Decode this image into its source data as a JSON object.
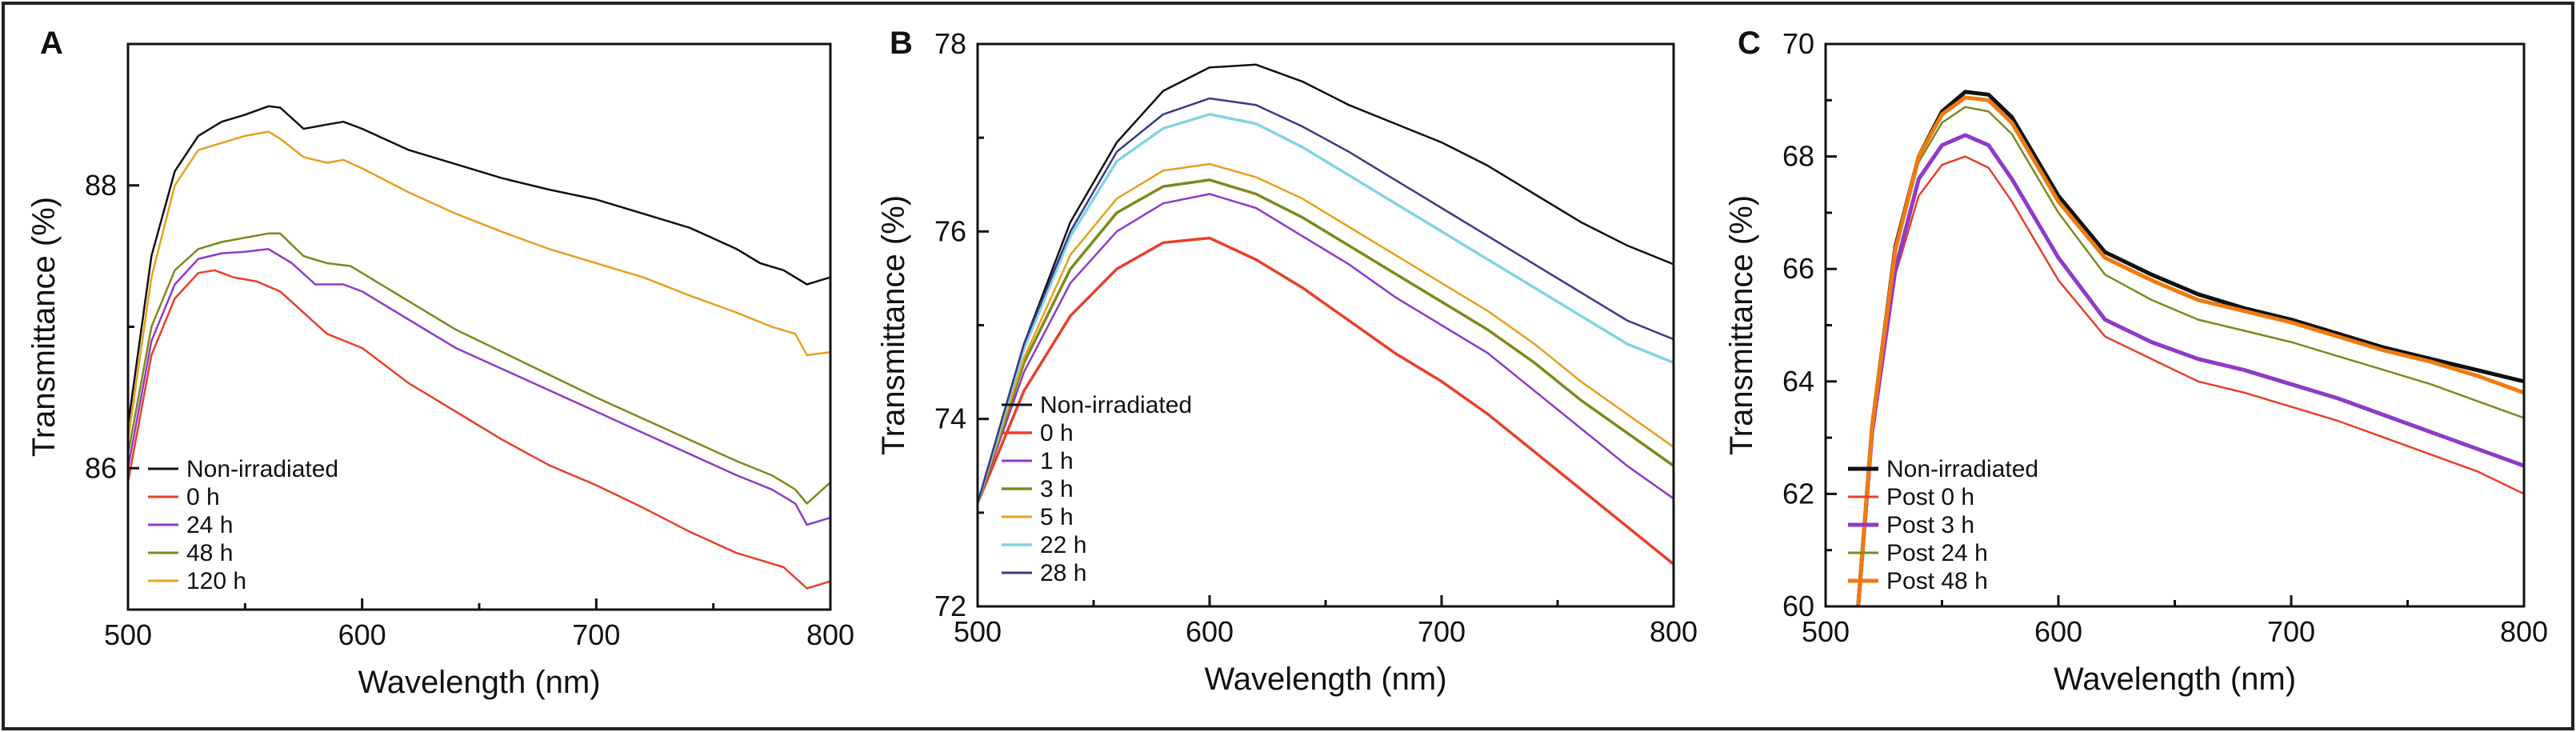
{
  "figure": {
    "border_color": "#222222"
  },
  "chart_data": [
    {
      "panel": "A",
      "type": "line",
      "title": "",
      "xlabel": "Wavelength (nm)",
      "ylabel": "Transmittance (%)",
      "xlim": [
        500,
        800
      ],
      "ylim": [
        85.0,
        89.0
      ],
      "xticks": [
        500,
        600,
        700,
        800
      ],
      "xtick_labels": [
        "500",
        "600",
        "700",
        "800"
      ],
      "yticks": [
        86,
        88
      ],
      "ytick_labels": [
        "86",
        "88"
      ],
      "legend_position": "bottom-left",
      "series": [
        {
          "name": "Non-irradiated",
          "color": "#111111",
          "width": 2.5,
          "x": [
            500,
            510,
            520,
            530,
            540,
            550,
            560,
            565,
            575,
            585,
            592,
            600,
            620,
            640,
            660,
            680,
            700,
            720,
            740,
            760,
            770,
            780,
            790,
            800
          ],
          "y": [
            86.3,
            87.5,
            88.1,
            88.35,
            88.45,
            88.5,
            88.56,
            88.55,
            88.4,
            88.43,
            88.45,
            88.4,
            88.25,
            88.15,
            88.05,
            87.97,
            87.9,
            87.8,
            87.7,
            87.55,
            87.45,
            87.4,
            87.3,
            87.35
          ]
        },
        {
          "name": "0 h",
          "color": "#e8402a",
          "width": 2.5,
          "x": [
            500,
            510,
            520,
            530,
            537,
            545,
            555,
            565,
            575,
            585,
            600,
            620,
            640,
            660,
            680,
            700,
            720,
            740,
            760,
            770,
            780,
            790,
            800
          ],
          "y": [
            85.9,
            86.8,
            87.2,
            87.38,
            87.4,
            87.35,
            87.32,
            87.25,
            87.1,
            86.95,
            86.85,
            86.6,
            86.4,
            86.2,
            86.02,
            85.88,
            85.72,
            85.55,
            85.4,
            85.35,
            85.3,
            85.15,
            85.2
          ]
        },
        {
          "name": "24 h",
          "color": "#8e3bc8",
          "width": 2.5,
          "x": [
            500,
            510,
            520,
            530,
            540,
            550,
            560,
            570,
            580,
            592,
            600,
            620,
            640,
            660,
            680,
            700,
            720,
            740,
            760,
            775,
            785,
            790,
            800
          ],
          "y": [
            86.0,
            86.9,
            87.3,
            87.48,
            87.52,
            87.53,
            87.55,
            87.45,
            87.3,
            87.3,
            87.25,
            87.05,
            86.85,
            86.7,
            86.55,
            86.4,
            86.25,
            86.1,
            85.95,
            85.85,
            85.75,
            85.6,
            85.65
          ]
        },
        {
          "name": "48 h",
          "color": "#7c8a1c",
          "width": 2.5,
          "x": [
            500,
            510,
            520,
            530,
            540,
            550,
            560,
            565,
            575,
            585,
            595,
            600,
            620,
            640,
            660,
            680,
            700,
            720,
            740,
            760,
            775,
            785,
            790,
            800
          ],
          "y": [
            86.1,
            87.0,
            87.4,
            87.55,
            87.6,
            87.63,
            87.66,
            87.66,
            87.5,
            87.45,
            87.43,
            87.38,
            87.18,
            86.98,
            86.82,
            86.66,
            86.5,
            86.35,
            86.2,
            86.05,
            85.95,
            85.85,
            85.75,
            85.9
          ]
        },
        {
          "name": "120 h",
          "color": "#e8a020",
          "width": 2.5,
          "x": [
            500,
            510,
            520,
            530,
            540,
            550,
            560,
            565,
            575,
            585,
            592,
            600,
            620,
            640,
            660,
            680,
            700,
            720,
            740,
            760,
            775,
            785,
            790,
            800
          ],
          "y": [
            86.2,
            87.35,
            88.0,
            88.25,
            88.3,
            88.35,
            88.38,
            88.33,
            88.2,
            88.16,
            88.18,
            88.12,
            87.95,
            87.8,
            87.67,
            87.55,
            87.45,
            87.35,
            87.22,
            87.1,
            87.0,
            86.95,
            86.8,
            86.82
          ]
        }
      ]
    },
    {
      "panel": "B",
      "type": "line",
      "title": "",
      "xlabel": "Wavelength (nm)",
      "ylabel": "Transmittance (%)",
      "xlim": [
        500,
        800
      ],
      "ylim": [
        72,
        78
      ],
      "xticks": [
        500,
        600,
        700,
        800
      ],
      "xtick_labels": [
        "500",
        "600",
        "700",
        "800"
      ],
      "yticks": [
        72,
        74,
        76,
        78
      ],
      "ytick_labels": [
        "72",
        "74",
        "76",
        "78"
      ],
      "legend_position": "bottom-left",
      "series": [
        {
          "name": "Non-irradiated",
          "color": "#111111",
          "width": 2.5,
          "x": [
            500,
            520,
            540,
            560,
            580,
            600,
            620,
            640,
            660,
            680,
            700,
            720,
            740,
            760,
            780,
            800
          ],
          "y": [
            73.1,
            74.8,
            76.1,
            76.95,
            77.5,
            77.75,
            77.78,
            77.6,
            77.35,
            77.15,
            76.95,
            76.7,
            76.4,
            76.1,
            75.85,
            75.65
          ]
        },
        {
          "name": "0 h",
          "color": "#e8402a",
          "width": 3.5,
          "x": [
            500,
            520,
            540,
            560,
            580,
            600,
            620,
            640,
            660,
            680,
            700,
            720,
            740,
            760,
            780,
            800
          ],
          "y": [
            73.1,
            74.3,
            75.1,
            75.6,
            75.88,
            75.93,
            75.7,
            75.4,
            75.05,
            74.7,
            74.4,
            74.05,
            73.65,
            73.25,
            72.85,
            72.45
          ]
        },
        {
          "name": "1 h",
          "color": "#8e3bc8",
          "width": 2.5,
          "x": [
            500,
            520,
            540,
            560,
            580,
            600,
            620,
            640,
            660,
            680,
            700,
            720,
            740,
            760,
            780,
            800
          ],
          "y": [
            73.1,
            74.5,
            75.45,
            76.0,
            76.3,
            76.4,
            76.25,
            75.95,
            75.65,
            75.3,
            75.0,
            74.7,
            74.3,
            73.9,
            73.5,
            73.15
          ]
        },
        {
          "name": "3 h",
          "color": "#7c8a1c",
          "width": 3.5,
          "x": [
            500,
            520,
            540,
            560,
            580,
            600,
            620,
            640,
            660,
            680,
            700,
            720,
            740,
            760,
            780,
            800
          ],
          "y": [
            73.1,
            74.6,
            75.6,
            76.2,
            76.48,
            76.55,
            76.4,
            76.15,
            75.85,
            75.55,
            75.25,
            74.95,
            74.6,
            74.2,
            73.85,
            73.5
          ]
        },
        {
          "name": "5 h",
          "color": "#e8a020",
          "width": 2.5,
          "x": [
            500,
            520,
            540,
            560,
            580,
            600,
            620,
            640,
            660,
            680,
            700,
            720,
            740,
            760,
            780,
            800
          ],
          "y": [
            73.1,
            74.65,
            75.75,
            76.35,
            76.65,
            76.72,
            76.58,
            76.35,
            76.05,
            75.75,
            75.45,
            75.15,
            74.8,
            74.4,
            74.05,
            73.7
          ]
        },
        {
          "name": "22 h",
          "color": "#82d4e2",
          "width": 3.5,
          "x": [
            500,
            520,
            540,
            560,
            580,
            600,
            620,
            640,
            660,
            680,
            700,
            720,
            740,
            760,
            780,
            800
          ],
          "y": [
            73.1,
            74.75,
            75.95,
            76.75,
            77.1,
            77.25,
            77.15,
            76.9,
            76.6,
            76.3,
            76.0,
            75.7,
            75.4,
            75.1,
            74.8,
            74.6
          ]
        },
        {
          "name": "28 h",
          "color": "#3a3a8a",
          "width": 2.5,
          "x": [
            500,
            520,
            540,
            560,
            580,
            600,
            620,
            640,
            660,
            680,
            700,
            720,
            740,
            760,
            780,
            800
          ],
          "y": [
            73.1,
            74.8,
            76.0,
            76.85,
            77.25,
            77.42,
            77.35,
            77.12,
            76.85,
            76.55,
            76.25,
            75.95,
            75.65,
            75.35,
            75.05,
            74.85
          ]
        }
      ]
    },
    {
      "panel": "C",
      "type": "line",
      "title": "",
      "xlabel": "Wavelength (nm)",
      "ylabel": "Transmittance (%)",
      "xlim": [
        500,
        800
      ],
      "ylim": [
        60,
        70
      ],
      "xticks": [
        500,
        600,
        700,
        800
      ],
      "xtick_labels": [
        "500",
        "600",
        "700",
        "800"
      ],
      "yticks": [
        60,
        62,
        64,
        66,
        68,
        70
      ],
      "ytick_labels": [
        "60",
        "62",
        "64",
        "66",
        "68",
        "70"
      ],
      "legend_position": "bottom-left",
      "series": [
        {
          "name": "Non-irradiated",
          "color": "#111111",
          "width": 5,
          "x": [
            514,
            520,
            530,
            540,
            550,
            560,
            570,
            580,
            590,
            600,
            620,
            640,
            660,
            680,
            700,
            720,
            740,
            760,
            780,
            800
          ],
          "y": [
            60.0,
            63.2,
            66.4,
            68.0,
            68.8,
            69.15,
            69.1,
            68.7,
            68.0,
            67.3,
            66.3,
            65.9,
            65.55,
            65.3,
            65.1,
            64.85,
            64.6,
            64.4,
            64.2,
            64.0
          ]
        },
        {
          "name": "Post 0 h",
          "color": "#e8402a",
          "width": 2.5,
          "x": [
            514,
            520,
            530,
            540,
            550,
            560,
            570,
            580,
            590,
            600,
            620,
            640,
            660,
            680,
            700,
            720,
            740,
            760,
            780,
            800
          ],
          "y": [
            60.0,
            63.0,
            65.9,
            67.3,
            67.85,
            68.0,
            67.8,
            67.2,
            66.5,
            65.8,
            64.8,
            64.4,
            64.0,
            63.8,
            63.55,
            63.3,
            63.0,
            62.7,
            62.4,
            62.0
          ]
        },
        {
          "name": "Post 3 h",
          "color": "#8e3bc8",
          "width": 5,
          "x": [
            514,
            520,
            530,
            540,
            550,
            560,
            570,
            580,
            590,
            600,
            620,
            640,
            660,
            680,
            700,
            720,
            740,
            760,
            780,
            800
          ],
          "y": [
            60.0,
            63.1,
            66.0,
            67.6,
            68.2,
            68.38,
            68.2,
            67.6,
            66.9,
            66.2,
            65.1,
            64.7,
            64.4,
            64.2,
            63.95,
            63.7,
            63.4,
            63.1,
            62.8,
            62.5
          ]
        },
        {
          "name": "Post 24 h",
          "color": "#7c8a1c",
          "width": 2.5,
          "x": [
            514,
            520,
            530,
            540,
            550,
            560,
            570,
            580,
            590,
            600,
            620,
            640,
            660,
            680,
            700,
            720,
            740,
            760,
            780,
            800
          ],
          "y": [
            60.0,
            63.2,
            66.3,
            67.9,
            68.6,
            68.88,
            68.8,
            68.4,
            67.7,
            67.0,
            65.9,
            65.45,
            65.1,
            64.9,
            64.7,
            64.45,
            64.2,
            63.95,
            63.65,
            63.35
          ]
        },
        {
          "name": "Post 48 h",
          "color": "#f07a10",
          "width": 5,
          "x": [
            514,
            520,
            530,
            540,
            550,
            560,
            570,
            580,
            590,
            600,
            620,
            640,
            660,
            680,
            700,
            720,
            740,
            760,
            780,
            800
          ],
          "y": [
            60.0,
            63.2,
            66.35,
            68.0,
            68.75,
            69.05,
            69.0,
            68.6,
            67.9,
            67.2,
            66.2,
            65.8,
            65.45,
            65.25,
            65.05,
            64.8,
            64.55,
            64.35,
            64.1,
            63.8
          ]
        }
      ]
    }
  ]
}
